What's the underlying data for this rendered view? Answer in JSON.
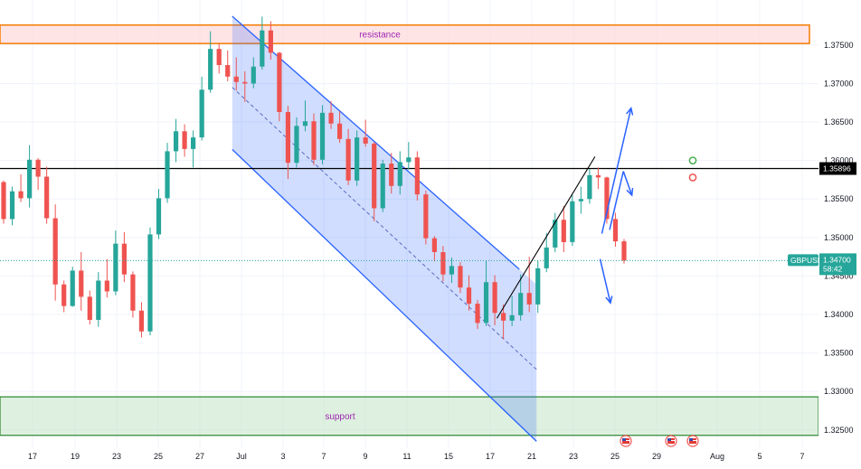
{
  "chart_data": {
    "type": "candlestick",
    "symbol": "GBPUSD",
    "current_price": "1.34700",
    "countdown": "58:42",
    "level_price": "1.35896",
    "ylim": [
      1.3225,
      1.3805
    ],
    "y_ticks": [
      "1.37500",
      "1.37000",
      "1.36500",
      "1.36000",
      "1.35500",
      "1.35000",
      "1.34500",
      "1.34000",
      "1.33500",
      "1.33000",
      "1.32500"
    ],
    "x_ticks": [
      "17",
      "19",
      "23",
      "25",
      "27",
      "Jul",
      "3",
      "7",
      "9",
      "11",
      "15",
      "17",
      "21",
      "23",
      "25",
      "29",
      "Aug",
      "5",
      "7"
    ],
    "zones": {
      "resistance": {
        "label": "resistance",
        "from": 1.3752,
        "to": 1.3776,
        "color": "#f57c00"
      },
      "support": {
        "label": "support",
        "from": 1.3243,
        "to": 1.3293,
        "color": "#388e3c"
      }
    },
    "horizontal_level": 1.35896,
    "colors": {
      "up": "#26a69a",
      "down": "#ef5350",
      "channel": "#2962ff",
      "level": "#000000"
    },
    "markers": [
      {
        "type": "circle",
        "color": "#4caf50",
        "price": 1.36
      },
      {
        "type": "circle",
        "color": "#ef5350",
        "price": 1.3578
      }
    ],
    "events": [
      "flag-us",
      "flag-us",
      "flag-us"
    ],
    "candles": [
      [
        1.3572,
        1.3574,
        1.3518,
        1.3524
      ],
      [
        1.3524,
        1.3566,
        1.3516,
        1.356
      ],
      [
        1.356,
        1.3582,
        1.3546,
        1.3551
      ],
      [
        1.3551,
        1.362,
        1.3539,
        1.3601
      ],
      [
        1.3601,
        1.3603,
        1.3562,
        1.3579
      ],
      [
        1.3579,
        1.3592,
        1.3518,
        1.3525
      ],
      [
        1.3525,
        1.3543,
        1.3418,
        1.3439
      ],
      [
        1.3439,
        1.3444,
        1.3403,
        1.3411
      ],
      [
        1.3411,
        1.3462,
        1.341,
        1.3457
      ],
      [
        1.3457,
        1.3481,
        1.3405,
        1.3423
      ],
      [
        1.3423,
        1.3431,
        1.3387,
        1.3393
      ],
      [
        1.3393,
        1.3455,
        1.3384,
        1.3444
      ],
      [
        1.3444,
        1.3472,
        1.3422,
        1.343
      ],
      [
        1.343,
        1.3509,
        1.3425,
        1.3492
      ],
      [
        1.3492,
        1.3507,
        1.3442,
        1.3452
      ],
      [
        1.3452,
        1.3456,
        1.3396,
        1.3405
      ],
      [
        1.3405,
        1.3416,
        1.337,
        1.3378
      ],
      [
        1.3378,
        1.3513,
        1.3373,
        1.3504
      ],
      [
        1.3504,
        1.3563,
        1.3498,
        1.3551
      ],
      [
        1.3551,
        1.3623,
        1.3545,
        1.3612
      ],
      [
        1.3612,
        1.3654,
        1.3598,
        1.3638
      ],
      [
        1.3638,
        1.3647,
        1.3605,
        1.3615
      ],
      [
        1.3615,
        1.3639,
        1.3591,
        1.363
      ],
      [
        1.363,
        1.3709,
        1.3626,
        1.3692
      ],
      [
        1.3692,
        1.3768,
        1.3688,
        1.3745
      ],
      [
        1.3745,
        1.3752,
        1.3713,
        1.3724
      ],
      [
        1.3724,
        1.3743,
        1.3703,
        1.3709
      ],
      [
        1.3709,
        1.3734,
        1.3691,
        1.3702
      ],
      [
        1.3702,
        1.3716,
        1.3676,
        1.37
      ],
      [
        1.37,
        1.3734,
        1.3694,
        1.3722
      ],
      [
        1.3722,
        1.3787,
        1.3718,
        1.3769
      ],
      [
        1.3769,
        1.3781,
        1.3731,
        1.374
      ],
      [
        1.374,
        1.3741,
        1.3651,
        1.3663
      ],
      [
        1.3663,
        1.3671,
        1.3576,
        1.3597
      ],
      [
        1.3597,
        1.3656,
        1.3591,
        1.3645
      ],
      [
        1.3645,
        1.3678,
        1.3638,
        1.3651
      ],
      [
        1.3651,
        1.3661,
        1.3594,
        1.3601
      ],
      [
        1.3601,
        1.3672,
        1.3595,
        1.3662
      ],
      [
        1.3662,
        1.3677,
        1.3641,
        1.3648
      ],
      [
        1.3648,
        1.3664,
        1.3623,
        1.3628
      ],
      [
        1.3628,
        1.3641,
        1.3568,
        1.3574
      ],
      [
        1.3574,
        1.3639,
        1.3567,
        1.363
      ],
      [
        1.363,
        1.3653,
        1.3618,
        1.3622
      ],
      [
        1.3622,
        1.3624,
        1.3521,
        1.3538
      ],
      [
        1.3538,
        1.3601,
        1.3533,
        1.3596
      ],
      [
        1.3596,
        1.361,
        1.3557,
        1.3567
      ],
      [
        1.3567,
        1.3612,
        1.3556,
        1.3598
      ],
      [
        1.3598,
        1.3624,
        1.3588,
        1.3604
      ],
      [
        1.3604,
        1.3612,
        1.3548,
        1.3556
      ],
      [
        1.3556,
        1.3561,
        1.3491,
        1.3499
      ],
      [
        1.3499,
        1.3502,
        1.3469,
        1.3481
      ],
      [
        1.3481,
        1.3489,
        1.3443,
        1.3452
      ],
      [
        1.3452,
        1.3474,
        1.3441,
        1.3463
      ],
      [
        1.3463,
        1.3468,
        1.3428,
        1.3435
      ],
      [
        1.3435,
        1.3451,
        1.3405,
        1.3414
      ],
      [
        1.3414,
        1.3419,
        1.3381,
        1.3389
      ],
      [
        1.3389,
        1.347,
        1.3385,
        1.3442
      ],
      [
        1.3442,
        1.3451,
        1.3386,
        1.3402
      ],
      [
        1.3402,
        1.3413,
        1.3368,
        1.3392
      ],
      [
        1.3392,
        1.3424,
        1.3385,
        1.3399
      ],
      [
        1.3399,
        1.3452,
        1.3392,
        1.3428
      ],
      [
        1.3428,
        1.3475,
        1.3403,
        1.3413
      ],
      [
        1.3413,
        1.347,
        1.3402,
        1.346
      ],
      [
        1.346,
        1.3506,
        1.3455,
        1.3487
      ],
      [
        1.3487,
        1.3532,
        1.3481,
        1.3523
      ],
      [
        1.3523,
        1.3541,
        1.3481,
        1.3494
      ],
      [
        1.3494,
        1.3555,
        1.3489,
        1.3547
      ],
      [
        1.3547,
        1.3566,
        1.3531,
        1.355
      ],
      [
        1.355,
        1.3589,
        1.3544,
        1.3581
      ],
      [
        1.3581,
        1.3591,
        1.3563,
        1.3578
      ],
      [
        1.3578,
        1.3579,
        1.3518,
        1.3524
      ],
      [
        1.3524,
        1.3532,
        1.3488,
        1.3495
      ],
      [
        1.3495,
        1.3498,
        1.3466,
        1.347
      ]
    ],
    "channel": {
      "upper": [
        [
          1.37874,
          0.2838
        ],
        [
          1.34587,
          0.6345
        ]
      ],
      "lower": [
        [
          1.36144,
          0.2838
        ],
        [
          1.32352,
          0.6555
        ]
      ],
      "mid": [
        [
          1.3695,
          0.2838
        ],
        [
          1.33285,
          0.6555
        ]
      ],
      "fill_end_index": 0.6555,
      "fill_bottom": 1.324
    },
    "trendline": [
      [
        1.3395,
        0.6071
      ],
      [
        1.3605,
        0.7269
      ]
    ],
    "arrows": [
      {
        "from": [
          1.3505,
          0.7353
        ],
        "to": [
          1.3668,
          0.771
        ]
      },
      {
        "from": [
          1.3472,
          0.7332
        ],
        "to": [
          1.3415,
          0.7458
        ]
      },
      {
        "from": [
          1.351,
          0.7448
        ],
        "to": [
          1.3586,
          0.7616
        ]
      },
      {
        "from": [
          1.3586,
          0.7616
        ],
        "to": [
          1.3555,
          0.772
        ]
      }
    ],
    "dashed_price_line": 1.347
  }
}
